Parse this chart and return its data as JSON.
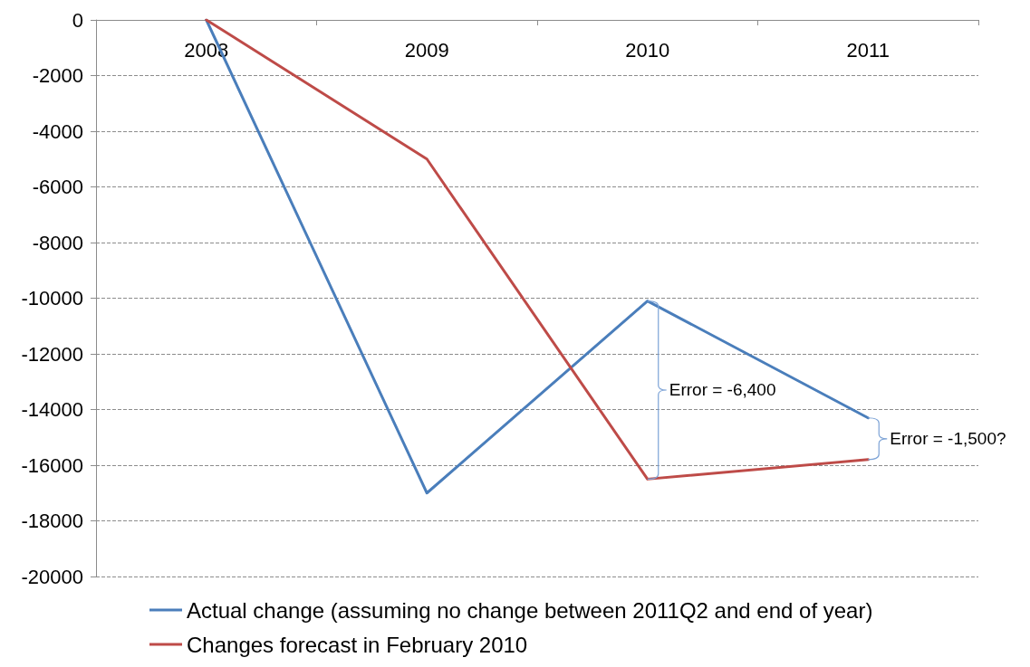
{
  "chart_data": {
    "type": "line",
    "categories": [
      "2008",
      "2009",
      "2010",
      "2011"
    ],
    "series": [
      {
        "name": "Actual change (assuming no change between 2011Q2 and end of year)",
        "color": "#4a7ebb",
        "values": [
          0,
          -17000,
          -10100,
          -14300
        ]
      },
      {
        "name": "Changes forecast in February 2010",
        "color": "#be4b48",
        "values": [
          0,
          -5000,
          -16500,
          -15800
        ]
      }
    ],
    "ylim": [
      -20000,
      0
    ],
    "yticks": [
      -20000,
      -18000,
      -16000,
      -14000,
      -12000,
      -10000,
      -8000,
      -6000,
      -4000,
      -2000,
      0
    ],
    "grid": "y",
    "legend": "bottom",
    "marker": "none",
    "line_style": "solid",
    "annotations": [
      {
        "text": "Error = -6,400",
        "x": "2010",
        "y": -16500
      },
      {
        "text": "Error = -1,500?",
        "x": "2011",
        "y": -15800
      }
    ]
  }
}
